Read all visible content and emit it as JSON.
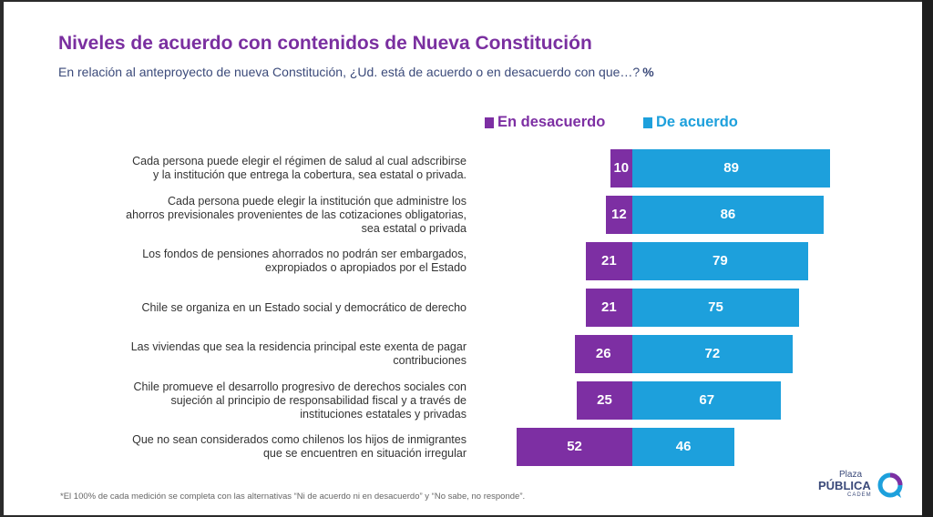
{
  "title": "Niveles de acuerdo con contenidos de Nueva Constitución",
  "subtitle": "En relación al anteproyecto de nueva Constitución, ¿Ud. está de acuerdo o en desacuerdo con que…?",
  "subtitle_unit": "%",
  "legend": {
    "disagree": "En desacuerdo",
    "agree": "De acuerdo"
  },
  "colors": {
    "disagree": "#7d2fa3",
    "agree": "#1da0dc",
    "title": "#7a2fa0",
    "subtitle": "#3b4a7a"
  },
  "chart_data": {
    "type": "bar",
    "orientation": "horizontal-diverging",
    "title": "Niveles de acuerdo con contenidos de Nueva Constitución",
    "subtitle": "En relación al anteproyecto de nueva Constitución, ¿Ud. está de acuerdo o en desacuerdo con que…? %",
    "legend_position": "top",
    "categories": [
      "Cada persona puede elegir el régimen de salud al cual adscribirse y la institución que entrega la cobertura, sea estatal o privada.",
      "Cada persona puede elegir la institución que administre los ahorros previsionales provenientes de las cotizaciones obligatorias, sea estatal o privada",
      "Los fondos de pensiones ahorrados no podrán ser embargados, expropiados o apropiados por el Estado",
      "Chile se organiza en un Estado social y democrático de derecho",
      "Las viviendas que sea la residencia principal este exenta de pagar contribuciones",
      "Chile promueve el desarrollo progresivo de derechos sociales con sujeción al principio de responsabilidad fiscal y a través de instituciones estatales y privadas",
      "Que no sean considerados como chilenos los hijos de inmigrantes que se encuentren en situación irregular"
    ],
    "category_lines": [
      [
        "Cada persona puede elegir el régimen de salud al cual adscribirse",
        "y la institución que entrega la cobertura, sea estatal o privada."
      ],
      [
        "Cada persona puede elegir la institución que administre los",
        "ahorros previsionales provenientes de las cotizaciones obligatorias,",
        "sea estatal o privada"
      ],
      [
        "Los fondos de pensiones ahorrados no podrán ser embargados,",
        "expropiados o apropiados por el Estado"
      ],
      [
        "Chile se organiza en un Estado social y democrático de derecho"
      ],
      [
        "Las viviendas que sea la residencia principal este exenta de pagar",
        "contribuciones"
      ],
      [
        "Chile promueve el desarrollo progresivo de derechos sociales con",
        "sujeción al principio de responsabilidad fiscal y a través de",
        "instituciones estatales y privadas"
      ],
      [
        "Que no sean considerados como chilenos los hijos de inmigrantes",
        "que se encuentren en situación irregular"
      ]
    ],
    "series": [
      {
        "name": "En desacuerdo",
        "values": [
          10,
          12,
          21,
          21,
          26,
          25,
          52
        ]
      },
      {
        "name": "De acuerdo",
        "values": [
          89,
          86,
          79,
          75,
          72,
          67,
          46
        ]
      }
    ],
    "data_labels": true
  },
  "footnote": "*El 100% de cada medición se completa con las alternativas “Ni de acuerdo ni en desacuerdo” y  “No sabe, no responde”.",
  "logo": {
    "line1": "Plaza",
    "line2": "PÚBLICA",
    "line3": "CADEM"
  }
}
